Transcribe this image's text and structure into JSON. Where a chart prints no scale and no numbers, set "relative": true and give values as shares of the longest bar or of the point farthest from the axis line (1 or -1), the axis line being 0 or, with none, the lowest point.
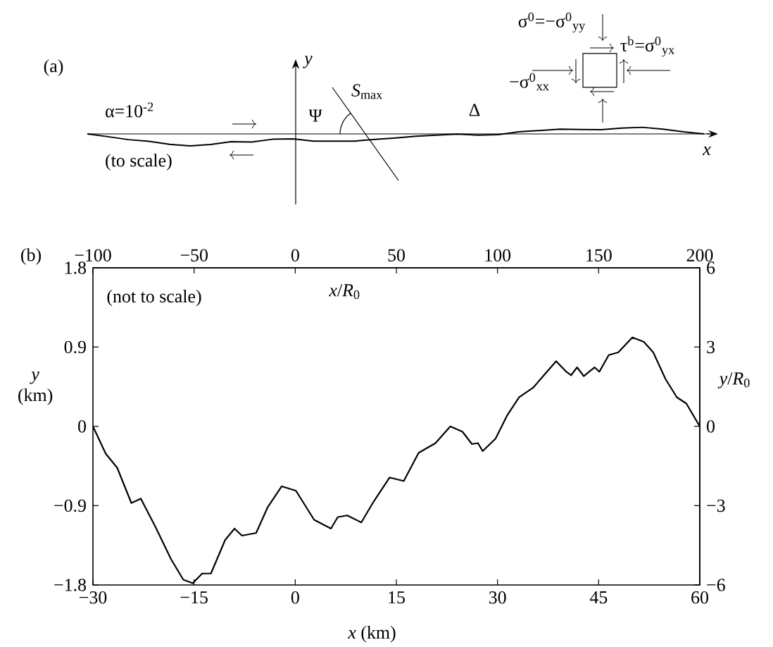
{
  "chart_data": [
    {
      "type": "line",
      "title": "(a)",
      "relative": true,
      "color": "#000000",
      "annotations": [
        "α=10$^{-2}$",
        "(to scale)",
        "Ψ",
        "*S*$_{max}$",
        "Δ",
        "*y*",
        "*x*",
        "σ$^{0}$=−σ$^{0}$$_{yy}$",
        "τ$^{b}$=σ$^{0}$$_{yx}$",
        "−σ$^{0}$$_{xx}$"
      ],
      "categories": [
        null,
        null,
        null,
        null,
        null,
        null,
        null,
        null,
        null,
        null,
        null,
        null,
        null,
        null,
        null,
        null,
        null,
        null,
        null,
        null,
        null,
        null,
        null,
        null,
        null,
        null,
        null,
        null,
        null,
        null,
        null
      ],
      "values": [
        0,
        -0.23,
        -0.48,
        -0.62,
        -0.87,
        -1,
        -0.89,
        -0.65,
        -0.68,
        -0.45,
        -0.41,
        -0.6,
        -0.6,
        -0.6,
        -0.46,
        -0.34,
        -0.19,
        -0.1,
        -0.02,
        -0.11,
        -0.06,
        0.17,
        0.28,
        0.4,
        0.37,
        0.35,
        0.48,
        0.55,
        0.39,
        0.17,
        0
      ]
    },
    {
      "type": "line",
      "title": "(b)",
      "xlabel": "*x* (km)",
      "ylabel": "*y* (km)",
      "x2label": "*x*/*R*$_{0}$",
      "y2label": "*y*/*R*$_{0}$",
      "annotations": [
        "(not to scale)"
      ],
      "x": [
        -30,
        -28.1,
        -26.4,
        -24.3,
        -22.9,
        -20.8,
        -18.4,
        -16.6,
        -15.2,
        -13.8,
        -12.5,
        -10.4,
        -9.0,
        -7.9,
        -5.8,
        -4.1,
        -2.0,
        0.1,
        2.8,
        5.3,
        6.3,
        7.7,
        9.8,
        11.5,
        14.0,
        16.1,
        18.3,
        20.8,
        23.0,
        24.8,
        26.2,
        27.1,
        27.8,
        29.7,
        31.4,
        33.2,
        35.3,
        37.1,
        38.7,
        40.2,
        40.9,
        41.8,
        42.8,
        44.4,
        45.1,
        46.5,
        47.9,
        50.0,
        51.7,
        53.1,
        54.9,
        56.6,
        58.0,
        60
      ],
      "values": [
        0,
        -0.31,
        -0.47,
        -0.87,
        -0.82,
        -1.13,
        -1.51,
        -1.74,
        -1.78,
        -1.67,
        -1.67,
        -1.29,
        -1.16,
        -1.24,
        -1.21,
        -0.92,
        -0.68,
        -0.73,
        -1.06,
        -1.16,
        -1.03,
        -1.01,
        -1.09,
        -0.87,
        -0.58,
        -0.62,
        -0.3,
        -0.19,
        0.0,
        -0.06,
        -0.2,
        -0.19,
        -0.28,
        -0.14,
        0.12,
        0.33,
        0.44,
        0.6,
        0.74,
        0.62,
        0.58,
        0.67,
        0.57,
        0.67,
        0.62,
        0.81,
        0.84,
        1.01,
        0.96,
        0.84,
        0.54,
        0.33,
        0.26,
        0
      ],
      "color": "#000000",
      "xlim": [
        -30,
        60
      ],
      "xticks": [
        {
          "value": -30,
          "label": "−30"
        },
        {
          "value": -15,
          "label": "−15"
        },
        0,
        15,
        30,
        45,
        60
      ],
      "ylim": [
        -1.8,
        1.8
      ],
      "yticks": [
        {
          "value": -1.8,
          "label": "−1.8"
        },
        {
          "value": -0.9,
          "label": "−0.9"
        },
        0,
        0.9,
        1.8
      ],
      "x2lim": [
        -100,
        200
      ],
      "x2ticks": [
        {
          "value": -100,
          "label": "−100"
        },
        {
          "value": -50,
          "label": "−50"
        },
        0,
        50,
        100,
        150,
        200
      ],
      "y2lim": [
        -6,
        6
      ],
      "y2ticks": [
        {
          "value": -6,
          "label": "−6"
        },
        {
          "value": -3,
          "label": "−3"
        },
        0,
        3,
        6
      ]
    }
  ]
}
